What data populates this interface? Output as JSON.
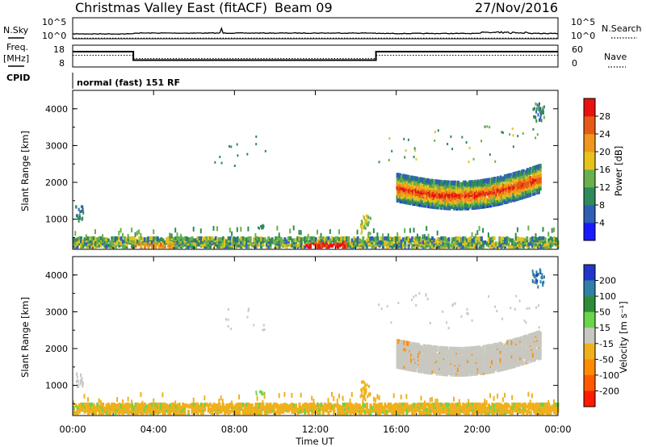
{
  "header": {
    "station": "Christmas Valley East (fitACF)",
    "beam": "Beam 09",
    "date": "27/Nov/2016"
  },
  "housekeeping": {
    "nsky_label": "N.Sky",
    "nsky_ticks": [
      "10^5",
      "10^0"
    ],
    "nsearch_label": "N.Search",
    "nsearch_ticks": [
      "10^5",
      "10^0"
    ],
    "freq_label": "Freq.",
    "freq_unit": "[MHz]",
    "freq_ticks": [
      "18",
      "8"
    ],
    "nave_label": "Nave",
    "nave_ticks": [
      "60",
      "0"
    ],
    "cpid_label": "CPID",
    "cpid_text": "normal (fast) 151 RF",
    "freq_steps": [
      {
        "from": "00:00",
        "to": "03:00",
        "level": "high"
      },
      {
        "from": "03:00",
        "to": "15:00",
        "level": "low"
      },
      {
        "from": "15:00",
        "to": "24:00",
        "level": "high"
      }
    ]
  },
  "chart_data": [
    {
      "type": "heatmap",
      "quantity": "power",
      "ylabel": "Slant Range [km]",
      "ylim": [
        180,
        4500
      ],
      "yticks": [
        "1000",
        "2000",
        "3000",
        "4000"
      ],
      "xlabel": "Time UT",
      "xlim": [
        0,
        24
      ],
      "xticks": [
        "00:00",
        "04:00",
        "08:00",
        "12:00",
        "16:00",
        "20:00",
        "00:00"
      ],
      "colorbar": {
        "label": "Power [dB]",
        "ticks": [
          "4",
          "8",
          "12",
          "16",
          "20",
          "24",
          "28"
        ],
        "range": [
          0,
          32
        ],
        "colors": [
          "#1a1aff",
          "#2e5fb5",
          "#2f8a5a",
          "#6ab04c",
          "#e6c21a",
          "#f0961c",
          "#e55b16",
          "#e8120f"
        ]
      },
      "echo_regions": [
        {
          "name": "ground scatter band",
          "t": [
            0,
            24
          ],
          "r": [
            200,
            420
          ],
          "level": 14
        },
        {
          "name": "ground scatter core",
          "t": [
            11.5,
            13.5
          ],
          "r": [
            230,
            330
          ],
          "level": 30
        },
        {
          "name": "ionospheric arc",
          "t": [
            16,
            23.1
          ],
          "r_center": [
            1800,
            1500,
            2000
          ],
          "width": 300,
          "level": 22
        },
        {
          "name": "far echoes",
          "t": [
            22.8,
            23.2
          ],
          "r": [
            3700,
            4100
          ],
          "level": 10
        }
      ]
    },
    {
      "type": "heatmap",
      "quantity": "velocity",
      "ylabel": "Slant Range [km]",
      "ylim": [
        180,
        4500
      ],
      "yticks": [
        "1000",
        "2000",
        "3000",
        "4000"
      ],
      "xlabel": "Time UT",
      "xlim": [
        0,
        24
      ],
      "xticks": [
        "00:00",
        "04:00",
        "08:00",
        "12:00",
        "16:00",
        "20:00",
        "00:00"
      ],
      "colorbar": {
        "label": "Velocity [m s⁻¹]",
        "ticks": [
          "200",
          "100",
          "50",
          "15",
          "-15",
          "-50",
          "-100",
          "-200"
        ],
        "colors": [
          "#2236c9",
          "#2f7fa8",
          "#2f8a3a",
          "#6ad44a",
          "#c8c8c0",
          "#f0b01c",
          "#ff8c00",
          "#ff5a00",
          "#ff1a00"
        ]
      },
      "echo_regions": [
        {
          "name": "ground scatter band",
          "t": [
            0,
            24
          ],
          "r": [
            200,
            420
          ],
          "level": -30
        },
        {
          "name": "ionospheric arc",
          "t": [
            16,
            23.1
          ],
          "r_center": [
            1800,
            1500,
            2000
          ],
          "width": 300,
          "level": 0
        },
        {
          "name": "far echoes",
          "t": [
            22.8,
            23.2
          ],
          "r": [
            3700,
            4100
          ],
          "level": 150
        }
      ]
    }
  ]
}
